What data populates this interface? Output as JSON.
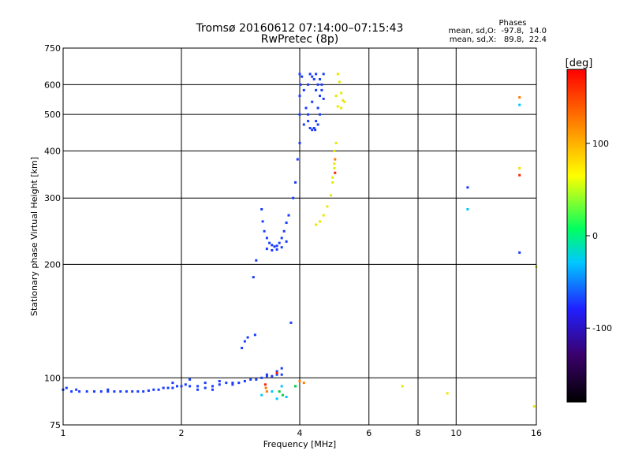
{
  "chart_data": {
    "type": "scatter",
    "title": "Tromsø 20160612 07:14:00–07:15:43",
    "subtitle": "RwPretec (8p)",
    "xlabel": "Frequency [MHz]",
    "ylabel": "Stationary phase Virtual Height [km]",
    "x_scale": "log",
    "y_scale": "log",
    "xlim": [
      1,
      16
    ],
    "ylim": [
      75,
      750
    ],
    "x_ticks": [
      1,
      2,
      4,
      6,
      8,
      10,
      16
    ],
    "y_ticks": [
      75,
      100,
      200,
      300,
      400,
      500,
      600,
      750
    ],
    "grid": true,
    "stats": {
      "header": "Phases",
      "line_o": "mean, sd,O:  -97.8,  14.0",
      "line_x": "mean, sd,X:   89.8,  22.4"
    },
    "colorbar": {
      "label": "[deg]",
      "range": [
        -180,
        180
      ],
      "ticks": [
        100,
        0,
        -100
      ],
      "colors": [
        "#000000",
        "#3a006b",
        "#2020ff",
        "#00c8ff",
        "#00ff60",
        "#ffff00",
        "#ff8000",
        "#ff0000"
      ]
    },
    "series": [
      {
        "color": "#1a3cff",
        "points": [
          [
            1.0,
            93
          ],
          [
            1.05,
            92
          ],
          [
            1.1,
            92
          ],
          [
            1.15,
            92
          ],
          [
            1.2,
            92
          ],
          [
            1.25,
            92
          ],
          [
            1.3,
            92
          ],
          [
            1.35,
            92
          ],
          [
            1.4,
            92
          ],
          [
            1.45,
            92
          ],
          [
            1.5,
            92
          ],
          [
            1.55,
            92
          ],
          [
            1.6,
            92
          ],
          [
            1.65,
            92.5
          ],
          [
            1.7,
            93
          ],
          [
            1.75,
            93
          ],
          [
            1.8,
            94
          ],
          [
            1.85,
            94
          ],
          [
            1.9,
            94
          ],
          [
            1.95,
            95
          ],
          [
            2.0,
            95
          ],
          [
            2.05,
            96
          ],
          [
            2.1,
            95
          ],
          [
            2.2,
            95
          ],
          [
            2.3,
            94
          ],
          [
            2.4,
            95
          ],
          [
            2.5,
            96
          ],
          [
            2.6,
            97
          ],
          [
            2.7,
            96
          ],
          [
            2.8,
            97
          ],
          [
            2.9,
            98
          ],
          [
            3.0,
            99
          ],
          [
            3.1,
            99
          ],
          [
            3.2,
            100
          ],
          [
            3.3,
            101
          ],
          [
            3.4,
            101
          ],
          [
            3.5,
            102
          ],
          [
            3.6,
            102
          ],
          [
            1.02,
            94
          ],
          [
            1.08,
            93
          ],
          [
            1.3,
            93
          ],
          [
            1.9,
            97
          ],
          [
            2.1,
            99
          ],
          [
            2.3,
            97
          ],
          [
            2.5,
            98
          ],
          [
            2.7,
            97
          ],
          [
            2.85,
            120
          ],
          [
            2.9,
            125
          ],
          [
            2.95,
            128
          ],
          [
            3.08,
            130
          ],
          [
            3.05,
            185
          ],
          [
            3.1,
            205
          ],
          [
            3.2,
            280
          ],
          [
            3.22,
            260
          ],
          [
            3.25,
            245
          ],
          [
            3.3,
            235
          ],
          [
            3.35,
            228
          ],
          [
            3.4,
            225
          ],
          [
            3.45,
            223
          ],
          [
            3.5,
            224
          ],
          [
            3.55,
            228
          ],
          [
            3.6,
            235
          ],
          [
            3.65,
            245
          ],
          [
            3.7,
            258
          ],
          [
            3.75,
            270
          ],
          [
            3.3,
            220
          ],
          [
            3.4,
            218
          ],
          [
            3.5,
            219
          ],
          [
            3.6,
            222
          ],
          [
            3.7,
            230
          ],
          [
            3.85,
            300
          ],
          [
            3.9,
            330
          ],
          [
            3.95,
            380
          ],
          [
            4.0,
            420
          ],
          [
            4.0,
            500
          ],
          [
            4.0,
            560
          ],
          [
            4.02,
            600
          ],
          [
            4.05,
            630
          ],
          [
            4.0,
            640
          ],
          [
            4.1,
            580
          ],
          [
            4.15,
            520
          ],
          [
            4.2,
            480
          ],
          [
            4.25,
            460
          ],
          [
            4.3,
            455
          ],
          [
            4.35,
            460
          ],
          [
            4.4,
            480
          ],
          [
            4.45,
            520
          ],
          [
            4.5,
            560
          ],
          [
            4.55,
            600
          ],
          [
            4.6,
            640
          ],
          [
            4.2,
            600
          ],
          [
            4.3,
            630
          ],
          [
            4.4,
            640
          ],
          [
            4.1,
            470
          ],
          [
            4.2,
            500
          ],
          [
            4.3,
            540
          ],
          [
            4.4,
            580
          ],
          [
            4.5,
            620
          ],
          [
            4.25,
            640
          ],
          [
            4.35,
            620
          ],
          [
            4.45,
            600
          ],
          [
            4.55,
            580
          ],
          [
            4.6,
            550
          ],
          [
            4.5,
            500
          ],
          [
            4.45,
            470
          ],
          [
            4.38,
            455
          ],
          [
            3.3,
            102
          ],
          [
            3.5,
            104
          ],
          [
            3.6,
            106
          ],
          [
            3.8,
            140
          ],
          [
            10.7,
            320
          ],
          [
            14.5,
            215
          ],
          [
            2.4,
            93
          ],
          [
            2.2,
            93
          ]
        ]
      },
      {
        "color": "#00c8ff",
        "points": [
          [
            3.2,
            90
          ],
          [
            3.4,
            92
          ],
          [
            3.5,
            88
          ],
          [
            3.6,
            95
          ],
          [
            3.7,
            89
          ],
          [
            14.5,
            530
          ],
          [
            10.7,
            280
          ]
        ]
      },
      {
        "color": "#00d040",
        "points": [
          [
            3.55,
            92
          ],
          [
            3.62,
            90
          ],
          [
            3.9,
            95
          ]
        ]
      },
      {
        "color": "#e8e800",
        "points": [
          [
            4.4,
            255
          ],
          [
            4.5,
            260
          ],
          [
            4.6,
            270
          ],
          [
            4.7,
            285
          ],
          [
            4.8,
            305
          ],
          [
            4.85,
            330
          ],
          [
            4.9,
            370
          ],
          [
            4.95,
            420
          ],
          [
            4.85,
            340
          ],
          [
            4.9,
            360
          ],
          [
            4.9,
            400
          ],
          [
            5.0,
            640
          ],
          [
            5.05,
            610
          ],
          [
            5.1,
            570
          ],
          [
            5.15,
            545
          ],
          [
            5.2,
            540
          ],
          [
            5.1,
            520
          ],
          [
            5.0,
            525
          ],
          [
            4.95,
            560
          ],
          [
            7.3,
            95
          ],
          [
            9.5,
            91
          ],
          [
            14.5,
            360
          ],
          [
            16.0,
            197
          ],
          [
            15.8,
            84
          ]
        ]
      },
      {
        "color": "#ff7a00",
        "points": [
          [
            3.28,
            94
          ],
          [
            3.3,
            92
          ],
          [
            4.0,
            98
          ],
          [
            4.1,
            97
          ],
          [
            4.92,
            380
          ],
          [
            14.5,
            555
          ]
        ]
      },
      {
        "color": "#ff2000",
        "points": [
          [
            3.27,
            96
          ],
          [
            4.92,
            350
          ],
          [
            14.5,
            345
          ],
          [
            3.5,
            103
          ]
        ]
      }
    ]
  }
}
